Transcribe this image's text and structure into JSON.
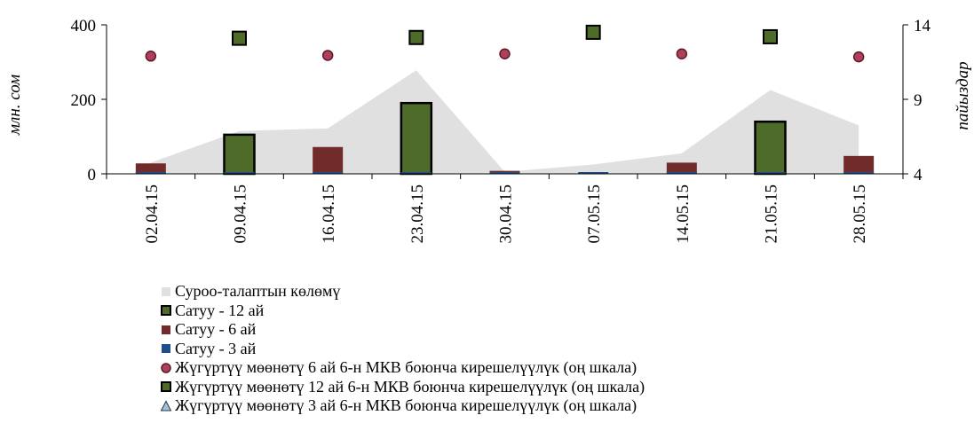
{
  "chart_data": {
    "type": "bar",
    "categories": [
      "02.04.15",
      "09.04.15",
      "16.04.15",
      "23.04.15",
      "30.04.15",
      "07.05.15",
      "14.05.15",
      "21.05.15",
      "28.05.15"
    ],
    "left_axis": {
      "label": "млн. сом",
      "ticks": [
        "0",
        "200",
        "400"
      ],
      "min": 0,
      "max": 400
    },
    "right_axis": {
      "label": "пайыздар",
      "ticks": [
        "4",
        "9",
        "14"
      ],
      "min": 4,
      "max": 14
    },
    "series": [
      {
        "name": "Суроо-талаптын көлөмү",
        "type": "area",
        "axis": "left",
        "color": "#e0e0e0",
        "values": [
          30,
          115,
          122,
          278,
          5,
          25,
          55,
          225,
          130
        ]
      },
      {
        "name": "Сатуу - 12 ай",
        "type": "bar",
        "axis": "left",
        "color": "#4e6b2a",
        "border": "#000000",
        "values": [
          0,
          105,
          0,
          190,
          0,
          0,
          0,
          140,
          0
        ]
      },
      {
        "name": "Сатуу - 6 ай",
        "type": "bar",
        "axis": "left",
        "color": "#722b2b",
        "values": [
          28,
          0,
          72,
          0,
          8,
          0,
          30,
          0,
          48
        ]
      },
      {
        "name": "Сатуу - 3 ай",
        "type": "bar",
        "axis": "left",
        "color": "#1f4e8c",
        "values": [
          2,
          2,
          2,
          2,
          2,
          2,
          2,
          2,
          2
        ]
      },
      {
        "name": "Жүгүртүү мөөнөтү 6 ай 6-н МКВ боюнча кирешелүүлүк (оң шкала)",
        "type": "scatter",
        "marker": "circle",
        "axis": "right",
        "color": "#b0405a",
        "values": [
          11.9,
          null,
          11.95,
          null,
          12.05,
          null,
          12.05,
          null,
          11.85
        ]
      },
      {
        "name": "Жүгүртүү мөөнөтү 12 ай 6-н МКВ боюнча кирешелүүлүк (оң шкала)",
        "type": "scatter",
        "marker": "square",
        "axis": "right",
        "color": "#4e6b2a",
        "values": [
          null,
          13.1,
          null,
          13.15,
          null,
          13.5,
          null,
          13.2,
          null
        ]
      },
      {
        "name": "Жүгүртүү мөөнөтү 3 ай 6-н МКВ боюнча кирешелүүлүк (оң шкала)",
        "type": "scatter",
        "marker": "triangle",
        "axis": "right",
        "color": "#9cc3e6",
        "values": [
          null,
          null,
          null,
          null,
          null,
          null,
          null,
          null,
          null
        ]
      }
    ]
  }
}
